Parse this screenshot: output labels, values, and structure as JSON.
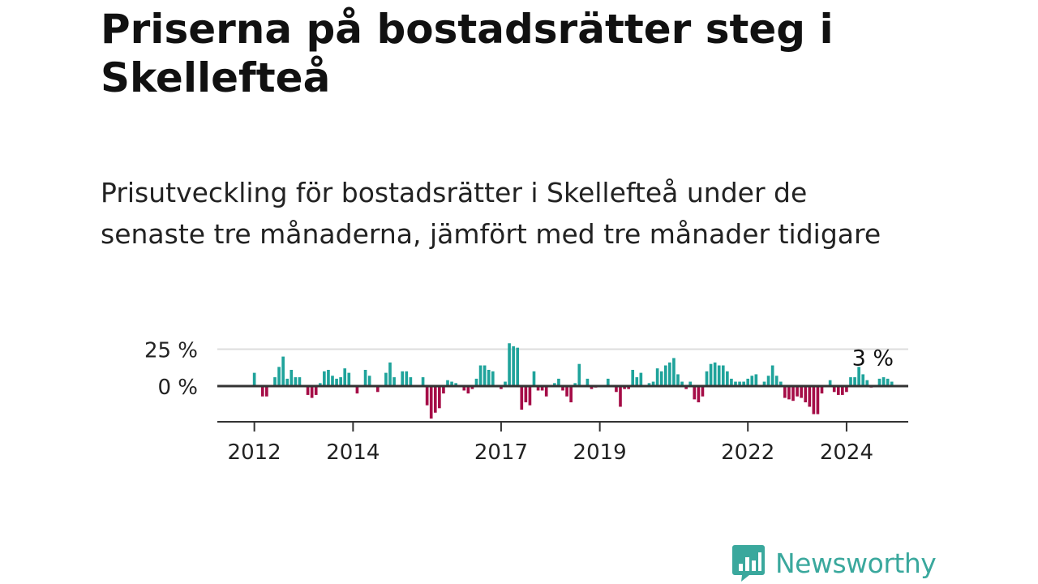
{
  "title": "Priserna på bostadsrätter steg i Skellefteå",
  "subtitle": "Prisutveckling för bostadsrätter i Skellefteå under de senaste tre månaderna, jämfört med tre månader tidigare",
  "brand": {
    "name": "Newsworthy"
  },
  "colors": {
    "positive": "#1fa39b",
    "negative": "#a50d47",
    "axis": "#333333",
    "grid": "#dddddd",
    "brand": "#3aa89d"
  },
  "chart_data": {
    "type": "bar",
    "title": "",
    "xlabel": "",
    "ylabel": "",
    "ylim": [
      -25,
      30
    ],
    "x_range": [
      2011.25,
      2025.25
    ],
    "y_tick_labels": [
      {
        "value": 25,
        "label": "25 %"
      },
      {
        "value": 0,
        "label": "0 %"
      }
    ],
    "x_tick_labels": [
      {
        "value": 2012,
        "label": "2012"
      },
      {
        "value": 2014,
        "label": "2014"
      },
      {
        "value": 2017,
        "label": "2017"
      },
      {
        "value": 2019,
        "label": "2019"
      },
      {
        "value": 2022,
        "label": "2022"
      },
      {
        "value": 2024,
        "label": "2024"
      }
    ],
    "annotation": {
      "text": "3 %",
      "value": 3
    },
    "series": [
      {
        "name": "Prisutveckling",
        "start": 2012,
        "step_months": 1,
        "values": [
          9,
          0,
          -7,
          -7,
          0,
          6,
          13,
          20,
          5,
          11,
          6,
          6,
          0,
          -6,
          -8,
          -6,
          2,
          10,
          11,
          7,
          5,
          6,
          12,
          9,
          0,
          -5,
          0,
          11,
          7,
          0,
          -4,
          0,
          9,
          16,
          6,
          0,
          10,
          10,
          6,
          0,
          0,
          6,
          -13,
          -22,
          -18,
          -15,
          -5,
          4,
          3,
          2,
          0,
          -3,
          -5,
          -2,
          5,
          14,
          14,
          11,
          10,
          0,
          -2,
          3,
          29,
          27,
          26,
          -16,
          -11,
          -13,
          10,
          -3,
          -3,
          -7,
          0,
          2,
          5,
          -3,
          -7,
          -11,
          2,
          15,
          0,
          5,
          -2,
          -1,
          0,
          0,
          5,
          0,
          -4,
          -14,
          -2,
          -2,
          11,
          6,
          9,
          0,
          2,
          3,
          12,
          10,
          14,
          16,
          19,
          8,
          3,
          -2,
          3,
          -9,
          -11,
          -7,
          10,
          15,
          16,
          14,
          14,
          10,
          5,
          3,
          3,
          3,
          5,
          7,
          8,
          0,
          3,
          7,
          14,
          7,
          3,
          -8,
          -9,
          -10,
          -7,
          -8,
          -11,
          -14,
          -19,
          -19,
          -5,
          0,
          4,
          -4,
          -6,
          -6,
          -4,
          6,
          6,
          13,
          8,
          4,
          -1,
          0,
          5,
          6,
          5,
          3
        ]
      }
    ]
  }
}
